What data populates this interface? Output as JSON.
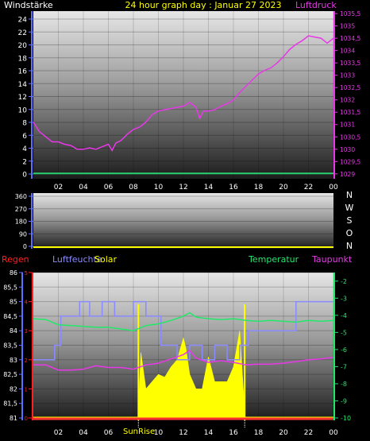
{
  "colors": {
    "background": "#000000",
    "wind": "#28d26e",
    "pressure": "#e838e8",
    "title": "#ffff00",
    "rain": "#ff3030",
    "humidity": "#8a8aff",
    "solar": "#ffff00",
    "temperature": "#22e86a",
    "dewpoint": "#e838e8",
    "axis_blue": "#5d6fff",
    "axis_red": "#ff2020",
    "axis_green": "#22e86a",
    "tick_text": "#ffffff"
  },
  "chart_data": [
    {
      "id": "wind-pressure",
      "type": "line",
      "title": "24 hour graph day : Januar 27 2023",
      "left_label": "Windstärke",
      "right_label": "Luftdruck",
      "x_ticks": [
        "02",
        "04",
        "06",
        "08",
        "10",
        "12",
        "14",
        "16",
        "18",
        "20",
        "22",
        "00"
      ],
      "x_tick_hours": [
        2,
        4,
        6,
        8,
        10,
        12,
        14,
        16,
        18,
        20,
        22,
        24
      ],
      "y_left_ticks": [
        "0",
        "2",
        "4",
        "6",
        "8",
        "10",
        "12",
        "14",
        "16",
        "18",
        "20",
        "22",
        "24"
      ],
      "y_left_range": [
        0,
        24
      ],
      "y_right_ticks": [
        "1029",
        "1029,5",
        "1030",
        "1030,5",
        "1031",
        "1031,5",
        "1032",
        "1032,5",
        "1033",
        "1033,5",
        "1034",
        "1034,5",
        "1035",
        "1035,5"
      ],
      "y_right_range": [
        1028.8,
        1035.6
      ],
      "series": [
        {
          "name": "Luftdruck",
          "axis": "right",
          "hours": [
            0,
            0.5,
            1,
            1.5,
            2,
            2.5,
            3,
            3.5,
            4,
            4.5,
            5,
            5.5,
            6,
            6.3,
            6.6,
            7,
            7.5,
            8,
            8.5,
            9,
            9.5,
            10,
            10.5,
            11,
            11.5,
            12,
            12.5,
            13,
            13.3,
            13.6,
            14,
            14.5,
            15,
            15.5,
            16,
            16.5,
            17,
            17.5,
            18,
            18.5,
            19,
            19.5,
            20,
            20.5,
            21,
            21.5,
            22,
            22.5,
            23,
            23.5,
            24
          ],
          "values": [
            1031.1,
            1030.7,
            1030.5,
            1030.3,
            1030.3,
            1030.2,
            1030.15,
            1030.0,
            1030.0,
            1030.05,
            1030.0,
            1030.1,
            1030.2,
            1029.95,
            1030.25,
            1030.35,
            1030.6,
            1030.8,
            1030.9,
            1031.1,
            1031.4,
            1031.55,
            1031.6,
            1031.65,
            1031.7,
            1031.75,
            1031.9,
            1031.7,
            1031.25,
            1031.55,
            1031.55,
            1031.6,
            1031.75,
            1031.85,
            1032.0,
            1032.3,
            1032.55,
            1032.8,
            1033.05,
            1033.2,
            1033.3,
            1033.5,
            1033.75,
            1034.05,
            1034.25,
            1034.4,
            1034.6,
            1034.55,
            1034.5,
            1034.3,
            1034.5
          ]
        },
        {
          "name": "Windstärke",
          "axis": "left",
          "hours": [
            0,
            24
          ],
          "values": [
            0.1,
            0.1
          ]
        }
      ]
    },
    {
      "id": "wind-direction",
      "type": "line",
      "y_left_ticks": [
        "0",
        "90",
        "180",
        "270",
        "360"
      ],
      "y_left_range": [
        0,
        360
      ],
      "compass_labels": [
        "N",
        "W",
        "S",
        "O",
        "N"
      ],
      "series": [
        {
          "name": "Windrichtung",
          "hours": [
            0,
            24
          ],
          "values": [
            0,
            0
          ]
        }
      ]
    },
    {
      "id": "climate",
      "type": "line",
      "labels": {
        "rain": "Regen",
        "humidity": "Luftfeuchte",
        "solar": "Solar",
        "temperature": "Temperatur",
        "dewpoint": "Taupunkt",
        "sunrise": "SunRise",
        "sunrise_short": "Sun"
      },
      "x_ticks": [
        "02",
        "04",
        "06",
        "08",
        "10",
        "12",
        "14",
        "16",
        "18",
        "20",
        "22",
        "00"
      ],
      "y_humidity_ticks": [
        "81",
        "81,5",
        "82",
        "82,5",
        "83",
        "83,5",
        "84",
        "84,5",
        "85",
        "85,5",
        "86"
      ],
      "y_humidity_range": [
        81,
        86
      ],
      "y_rain_ticks": [
        "0",
        "1",
        "2",
        "3",
        "4",
        "5"
      ],
      "y_rain_range": [
        0,
        5
      ],
      "y_temp_ticks": [
        "-10",
        "-9",
        "-8",
        "-7",
        "-6",
        "-5",
        "-4",
        "-3",
        "-2"
      ],
      "y_temp_range": [
        -10,
        -1.5
      ],
      "sunrise_hour": 8.4,
      "sunset_hour": 16.9,
      "series": [
        {
          "name": "Luftfeuchte",
          "axis": "humidity",
          "step": true,
          "hours": [
            0,
            1.7,
            1.7,
            2.2,
            2.2,
            3.7,
            3.7,
            4.5,
            4.5,
            5.5,
            5.5,
            6.5,
            6.5,
            8.0,
            8.0,
            9.0,
            9.0,
            10.2,
            10.2,
            11.5,
            11.5,
            12.5,
            12.5,
            13.5,
            13.5,
            14.5,
            14.5,
            15.5,
            15.5,
            16.5,
            16.5,
            17.2,
            17.2,
            21.0,
            21.0,
            24
          ],
          "values": [
            83,
            83,
            83.5,
            83.5,
            84.5,
            84.5,
            85,
            85,
            84.5,
            84.5,
            85,
            85,
            84.5,
            84.5,
            85,
            85,
            84.5,
            84.5,
            83.5,
            83.5,
            83,
            83,
            83.5,
            83.5,
            83,
            83,
            83.5,
            83.5,
            83,
            83,
            83.5,
            83.5,
            84,
            84,
            85,
            85
          ]
        },
        {
          "name": "Temperatur",
          "axis": "temp",
          "hours": [
            0,
            1,
            2,
            3,
            4,
            5,
            6,
            7,
            8,
            9,
            10,
            11,
            12,
            12.5,
            13,
            14,
            15,
            16,
            17,
            18,
            19,
            20,
            21,
            22,
            23,
            24
          ],
          "values": [
            -4.2,
            -4.25,
            -4.55,
            -4.6,
            -4.65,
            -4.7,
            -4.7,
            -4.8,
            -4.9,
            -4.6,
            -4.5,
            -4.3,
            -4.05,
            -3.85,
            -4.1,
            -4.2,
            -4.25,
            -4.2,
            -4.3,
            -4.35,
            -4.3,
            -4.35,
            -4.4,
            -4.3,
            -4.35,
            -4.3
          ]
        },
        {
          "name": "Taupunkt",
          "axis": "temp",
          "hours": [
            0,
            1,
            2,
            3,
            4,
            5,
            6,
            7,
            8,
            9,
            10,
            11,
            12,
            12.5,
            13,
            14,
            15,
            16,
            17,
            18,
            19,
            20,
            21,
            22,
            23,
            24
          ],
          "values": [
            -6.9,
            -6.9,
            -7.2,
            -7.2,
            -7.15,
            -6.95,
            -7.05,
            -7.05,
            -7.15,
            -6.9,
            -6.8,
            -6.55,
            -6.3,
            -6.05,
            -6.5,
            -6.75,
            -6.65,
            -6.75,
            -6.9,
            -6.85,
            -6.85,
            -6.8,
            -6.7,
            -6.6,
            -6.55,
            -6.45
          ]
        },
        {
          "name": "Regen",
          "axis": "rain",
          "hours": [
            0,
            24
          ],
          "values": [
            0,
            0
          ]
        },
        {
          "name": "Solar",
          "hours": [
            8.4,
            8.6,
            9.0,
            9.5,
            10.0,
            10.5,
            11.0,
            11.5,
            12.0,
            12.2,
            12.5,
            13.0,
            13.5,
            14.0,
            14.5,
            15.0,
            15.5,
            16.0,
            16.5,
            16.9
          ],
          "values": [
            0.05,
            0.45,
            0.2,
            0.25,
            0.3,
            0.28,
            0.35,
            0.4,
            0.55,
            0.48,
            0.3,
            0.2,
            0.2,
            0.42,
            0.25,
            0.25,
            0.25,
            0.35,
            0.6,
            0.05
          ]
        }
      ]
    }
  ]
}
